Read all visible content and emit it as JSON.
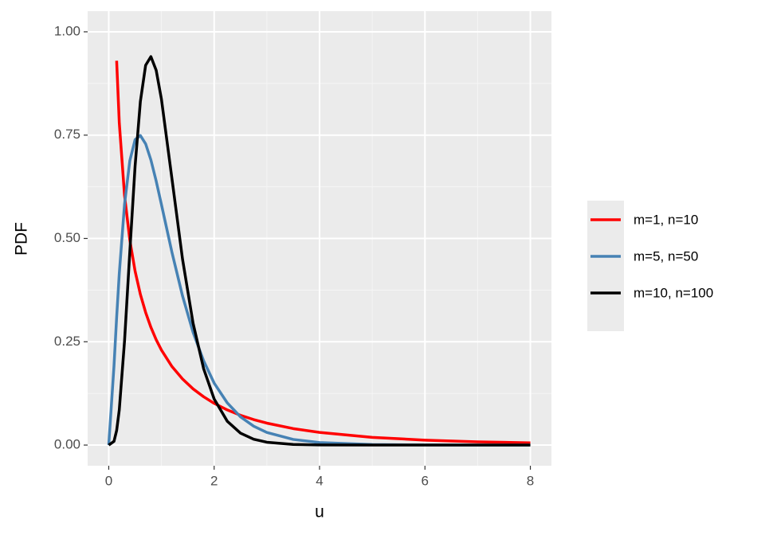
{
  "chart_data": {
    "type": "line",
    "x_label": "u",
    "y_label": "PDF",
    "x": [
      0,
      0.1,
      0.15,
      0.2,
      0.3,
      0.4,
      0.5,
      0.6,
      0.7,
      0.8,
      0.9,
      1.0,
      1.2,
      1.4,
      1.6,
      1.8,
      2.0,
      2.25,
      2.5,
      2.75,
      3,
      3.5,
      4,
      5,
      6,
      7,
      8
    ],
    "series": [
      {
        "name": "m=1, n=10",
        "color": "#ff0000",
        "values": [
          null,
          null,
          0.93,
          0.78,
          0.604,
          0.496,
          0.421,
          0.365,
          0.321,
          0.285,
          0.255,
          0.23,
          0.19,
          0.16,
          0.136,
          0.117,
          0.101,
          0.085,
          0.0721,
          0.0617,
          0.0531,
          0.0399,
          0.0306,
          0.0187,
          0.012,
          0.0079,
          0.0054
        ]
      },
      {
        "name": "m=5, n=50",
        "color": "#4682b4",
        "values": [
          0,
          0.192,
          0.309,
          0.415,
          0.583,
          0.688,
          0.739,
          0.749,
          0.729,
          0.69,
          0.639,
          0.582,
          0.466,
          0.361,
          0.273,
          0.204,
          0.15,
          0.102,
          0.0684,
          0.0457,
          0.0306,
          0.0137,
          0.0061,
          0.0013,
          0.0003,
          0.0001,
          0
        ]
      },
      {
        "name": "m=10, n=100",
        "color": "#000000",
        "values": [
          0,
          0.00915,
          0.0353,
          0.0851,
          0.252,
          0.468,
          0.675,
          0.831,
          0.919,
          0.94,
          0.907,
          0.837,
          0.644,
          0.45,
          0.295,
          0.185,
          0.1116,
          0.0575,
          0.0289,
          0.0142,
          0.0069,
          0.0016,
          0.0004,
          0,
          0,
          0,
          0
        ]
      }
    ],
    "xlim": [
      -0.4,
      8.4
    ],
    "ylim": [
      -0.05,
      1.05
    ],
    "xticks": [
      0,
      2,
      4,
      6,
      8
    ],
    "yticks": [
      {
        "value": 0,
        "label": "0.00"
      },
      {
        "value": 0.25,
        "label": "0.25"
      },
      {
        "value": 0.5,
        "label": "0.50"
      },
      {
        "value": 0.75,
        "label": "0.75"
      },
      {
        "value": 1,
        "label": "1.00"
      }
    ],
    "grid": true,
    "legend_position": "right"
  }
}
